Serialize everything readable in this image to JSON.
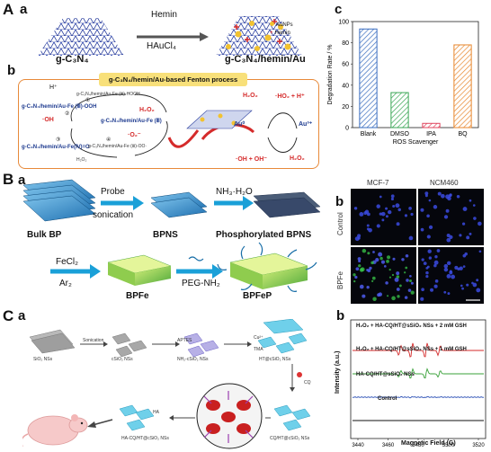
{
  "panelA": {
    "letter": "A",
    "sub_a": "a",
    "sub_b": "b",
    "sub_c": "c",
    "left_label": "g-C₃N₄",
    "right_label": "g-C₃N₄/hemin/Au",
    "arrow_top": "Hemin",
    "arrow_bottom": "HAuCl₄",
    "legend": [
      "AuNPs",
      "Hemin"
    ],
    "fenton_title": "g-C₃N₄/hemin/Au-based Fenton process",
    "fenton_labels": {
      "hplus": "H⁺",
      "h2o2": "H₂O₂",
      "oh_radical": "·OH",
      "o2_radical": "·O₂⁻",
      "h2o": "H₂O₂",
      "cu_hooh": "g-C₃N₄/hemin/Au-Fe (Ⅲ)-HOOH",
      "cu_ooh": "g-C₃N₄/hemin/Au-Fe (Ⅲ)-OOH",
      "cu_fe3": "g-C₃N₄/hemin/Au-Fe (Ⅲ)",
      "cu_fe4": "g-C₃N₄/hemin/Au-Fe(Ⅳ)=O",
      "cu_oo": "g-C₃N₄/hemin/Au-Fe (Ⅲ)-OO·",
      "au0": "Au⁰",
      "au3": "Au³⁺",
      "ho2": "·HO₂ + H⁺",
      "oh_oh": "·OH + OH⁻",
      "circled": [
        "①",
        "②",
        "③",
        "④"
      ]
    }
  },
  "chart_data": {
    "type": "bar",
    "categories": [
      "Blank",
      "DMSO",
      "IPA",
      "BQ"
    ],
    "values": [
      93,
      33,
      4,
      78
    ],
    "colors": [
      "#3a6ec0",
      "#3aa655",
      "#e0475f",
      "#e8872e"
    ],
    "ylabel": "Degradation Rate / %",
    "xlabel": "ROS Scavenger",
    "ylim": [
      0,
      100
    ],
    "yticks": [
      0,
      20,
      40,
      60,
      80,
      100
    ]
  },
  "panelB": {
    "letter": "B",
    "sub_a": "a",
    "sub_b": "b",
    "bulk_bp": "Bulk BP",
    "probe": "Probe",
    "sonication": "sonication",
    "bpns": "BPNS",
    "nh3": "NH₃·H₂O",
    "phos_bpns": "Phosphorylated BPNS",
    "fecl2": "FeCl₂",
    "ar2": "Ar₂",
    "bpfe": "BPFe",
    "peg": "PEG-NH₂",
    "bpfep": "BPFeP",
    "col_labels": [
      "MCF-7",
      "NCM460"
    ],
    "row_labels": [
      "Control",
      "BPFe"
    ]
  },
  "panelC": {
    "letter": "C",
    "sub_a": "a",
    "sub_b": "b",
    "steps": [
      "SiO₂ NSs",
      "cSiO₂ NSs",
      "NH₂-cSiO₂ NSs",
      "HT@cSiO₂ NSs",
      "CQ/HT@cSiO₂ NSs",
      "HA-CQ/HT@cSiO₂ NSs"
    ],
    "arrows": [
      "Sonication",
      "APTES",
      "Cu²⁺",
      "TMA",
      "CQ",
      "HA"
    ],
    "esr_lines": [
      {
        "label": "H₂O₂ + HA-CQ/HT@sSiO₂ NSs + 2 mM GSH",
        "color": "#d42a2a"
      },
      {
        "label": "H₂O₂ + HA-CQ/HT@sSiO₂ NSs + 1 mM GSH",
        "color": "#3aa23a"
      },
      {
        "label": "HA-CQ/HT@sSiO₂ NSs",
        "color": "#2a4fb5"
      },
      {
        "label": "Control",
        "color": "#111111"
      }
    ],
    "esr_ylabel": "Intensity (a.u.)",
    "esr_xlabel": "Magnetic Field (G)",
    "esr_xticks": [
      "3440",
      "3460",
      "3480",
      "3500",
      "3520"
    ]
  }
}
